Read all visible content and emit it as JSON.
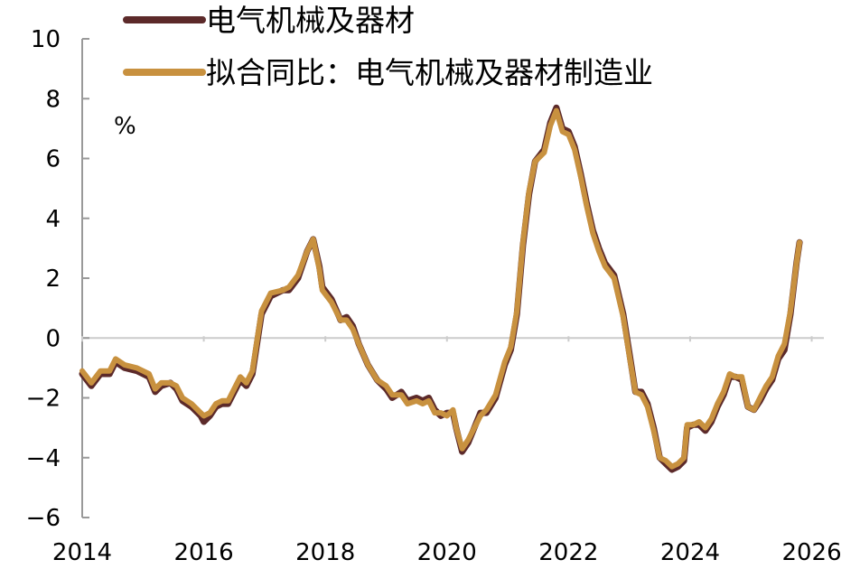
{
  "chart_data": {
    "type": "line",
    "title": "",
    "xlabel": "",
    "ylabel": "",
    "unit_label": "%",
    "xlim": [
      2014,
      2026.2
    ],
    "ylim": [
      -6,
      10
    ],
    "x_ticks": [
      2014,
      2016,
      2018,
      2020,
      2022,
      2024,
      2026
    ],
    "x_tick_labels": [
      "2014",
      "2016",
      "2018",
      "2020",
      "2022",
      "2024",
      "2026"
    ],
    "y_ticks": [
      -6,
      -4,
      -2,
      0,
      2,
      4,
      6,
      8,
      10
    ],
    "y_tick_labels": [
      "−6",
      "−4",
      "−2",
      "0",
      "2",
      "4",
      "6",
      "8",
      "10"
    ],
    "grid": false,
    "zero_line": true,
    "legend_position": "top",
    "colors": {
      "axis": "#999999",
      "zero_line": "#cccccc"
    },
    "series": [
      {
        "name": "电气机械及器材",
        "color": "#5c2a2a",
        "points": [
          [
            2014.0,
            -1.2
          ],
          [
            2014.15,
            -1.6
          ],
          [
            2014.3,
            -1.2
          ],
          [
            2014.45,
            -1.2
          ],
          [
            2014.55,
            -0.8
          ],
          [
            2014.7,
            -1.0
          ],
          [
            2014.9,
            -1.1
          ],
          [
            2015.0,
            -1.2
          ],
          [
            2015.1,
            -1.3
          ],
          [
            2015.2,
            -1.8
          ],
          [
            2015.3,
            -1.6
          ],
          [
            2015.45,
            -1.5
          ],
          [
            2015.55,
            -1.7
          ],
          [
            2015.65,
            -2.1
          ],
          [
            2015.8,
            -2.3
          ],
          [
            2015.95,
            -2.6
          ],
          [
            2016.0,
            -2.8
          ],
          [
            2016.1,
            -2.6
          ],
          [
            2016.2,
            -2.3
          ],
          [
            2016.3,
            -2.2
          ],
          [
            2016.4,
            -2.2
          ],
          [
            2016.5,
            -1.8
          ],
          [
            2016.6,
            -1.4
          ],
          [
            2016.7,
            -1.6
          ],
          [
            2016.8,
            -1.2
          ],
          [
            2016.95,
            0.8
          ],
          [
            2017.1,
            1.4
          ],
          [
            2017.3,
            1.6
          ],
          [
            2017.4,
            1.6
          ],
          [
            2017.55,
            2.0
          ],
          [
            2017.7,
            2.9
          ],
          [
            2017.8,
            3.3
          ],
          [
            2017.9,
            2.4
          ],
          [
            2017.95,
            1.7
          ],
          [
            2018.1,
            1.3
          ],
          [
            2018.25,
            0.6
          ],
          [
            2018.35,
            0.7
          ],
          [
            2018.45,
            0.4
          ],
          [
            2018.55,
            -0.2
          ],
          [
            2018.7,
            -0.9
          ],
          [
            2018.85,
            -1.4
          ],
          [
            2019.0,
            -1.7
          ],
          [
            2019.1,
            -2.0
          ],
          [
            2019.25,
            -1.8
          ],
          [
            2019.35,
            -2.1
          ],
          [
            2019.5,
            -2.0
          ],
          [
            2019.6,
            -2.1
          ],
          [
            2019.7,
            -2.0
          ],
          [
            2019.8,
            -2.4
          ],
          [
            2019.9,
            -2.6
          ],
          [
            2020.0,
            -2.5
          ],
          [
            2020.1,
            -2.5
          ],
          [
            2020.15,
            -3.0
          ],
          [
            2020.25,
            -3.8
          ],
          [
            2020.35,
            -3.5
          ],
          [
            2020.45,
            -3.0
          ],
          [
            2020.55,
            -2.5
          ],
          [
            2020.65,
            -2.5
          ],
          [
            2020.8,
            -2.0
          ],
          [
            2020.95,
            -0.9
          ],
          [
            2021.05,
            -0.4
          ],
          [
            2021.15,
            0.8
          ],
          [
            2021.25,
            3.1
          ],
          [
            2021.35,
            4.8
          ],
          [
            2021.45,
            5.9
          ],
          [
            2021.6,
            6.3
          ],
          [
            2021.7,
            7.2
          ],
          [
            2021.8,
            7.7
          ],
          [
            2021.9,
            7.0
          ],
          [
            2022.0,
            6.9
          ],
          [
            2022.1,
            6.4
          ],
          [
            2022.2,
            5.5
          ],
          [
            2022.3,
            4.5
          ],
          [
            2022.4,
            3.6
          ],
          [
            2022.5,
            3.0
          ],
          [
            2022.6,
            2.5
          ],
          [
            2022.75,
            2.1
          ],
          [
            2022.9,
            0.8
          ],
          [
            2023.0,
            -0.5
          ],
          [
            2023.1,
            -1.8
          ],
          [
            2023.2,
            -1.8
          ],
          [
            2023.3,
            -2.2
          ],
          [
            2023.4,
            -3.0
          ],
          [
            2023.5,
            -4.0
          ],
          [
            2023.6,
            -4.2
          ],
          [
            2023.7,
            -4.4
          ],
          [
            2023.8,
            -4.3
          ],
          [
            2023.9,
            -4.1
          ],
          [
            2023.95,
            -3.0
          ],
          [
            2024.05,
            -2.9
          ],
          [
            2024.15,
            -2.9
          ],
          [
            2024.25,
            -3.1
          ],
          [
            2024.35,
            -2.8
          ],
          [
            2024.45,
            -2.3
          ],
          [
            2024.55,
            -1.9
          ],
          [
            2024.65,
            -1.3
          ],
          [
            2024.75,
            -1.3
          ],
          [
            2024.85,
            -1.4
          ],
          [
            2024.95,
            -2.3
          ],
          [
            2025.05,
            -2.4
          ],
          [
            2025.15,
            -2.1
          ],
          [
            2025.25,
            -1.7
          ],
          [
            2025.35,
            -1.4
          ],
          [
            2025.45,
            -0.7
          ],
          [
            2025.55,
            -0.4
          ],
          [
            2025.65,
            0.8
          ],
          [
            2025.75,
            2.5
          ],
          [
            2025.8,
            3.2
          ]
        ]
      },
      {
        "name": "拟合同比：电气机械及器材制造业",
        "color": "#c8913f",
        "points": [
          [
            2014.0,
            -1.1
          ],
          [
            2014.15,
            -1.5
          ],
          [
            2014.3,
            -1.1
          ],
          [
            2014.45,
            -1.1
          ],
          [
            2014.55,
            -0.7
          ],
          [
            2014.7,
            -0.9
          ],
          [
            2014.9,
            -1.0
          ],
          [
            2015.0,
            -1.1
          ],
          [
            2015.1,
            -1.2
          ],
          [
            2015.2,
            -1.7
          ],
          [
            2015.3,
            -1.5
          ],
          [
            2015.45,
            -1.5
          ],
          [
            2015.55,
            -1.6
          ],
          [
            2015.65,
            -2.0
          ],
          [
            2015.8,
            -2.2
          ],
          [
            2015.95,
            -2.5
          ],
          [
            2016.0,
            -2.6
          ],
          [
            2016.1,
            -2.5
          ],
          [
            2016.2,
            -2.2
          ],
          [
            2016.3,
            -2.1
          ],
          [
            2016.4,
            -2.1
          ],
          [
            2016.5,
            -1.7
          ],
          [
            2016.6,
            -1.3
          ],
          [
            2016.7,
            -1.5
          ],
          [
            2016.8,
            -1.1
          ],
          [
            2016.95,
            0.9
          ],
          [
            2017.1,
            1.5
          ],
          [
            2017.3,
            1.6
          ],
          [
            2017.4,
            1.7
          ],
          [
            2017.55,
            2.1
          ],
          [
            2017.7,
            2.9
          ],
          [
            2017.8,
            3.3
          ],
          [
            2017.9,
            2.3
          ],
          [
            2017.95,
            1.6
          ],
          [
            2018.1,
            1.2
          ],
          [
            2018.25,
            0.6
          ],
          [
            2018.35,
            0.6
          ],
          [
            2018.45,
            0.3
          ],
          [
            2018.55,
            -0.2
          ],
          [
            2018.7,
            -0.9
          ],
          [
            2018.85,
            -1.4
          ],
          [
            2019.0,
            -1.6
          ],
          [
            2019.1,
            -1.9
          ],
          [
            2019.25,
            -1.9
          ],
          [
            2019.35,
            -2.2
          ],
          [
            2019.5,
            -2.1
          ],
          [
            2019.6,
            -2.2
          ],
          [
            2019.7,
            -2.1
          ],
          [
            2019.8,
            -2.5
          ],
          [
            2019.9,
            -2.5
          ],
          [
            2020.0,
            -2.6
          ],
          [
            2020.1,
            -2.4
          ],
          [
            2020.15,
            -3.0
          ],
          [
            2020.25,
            -3.7
          ],
          [
            2020.35,
            -3.4
          ],
          [
            2020.45,
            -3.0
          ],
          [
            2020.55,
            -2.6
          ],
          [
            2020.65,
            -2.4
          ],
          [
            2020.8,
            -1.9
          ],
          [
            2020.95,
            -0.8
          ],
          [
            2021.05,
            -0.3
          ],
          [
            2021.15,
            0.9
          ],
          [
            2021.25,
            3.2
          ],
          [
            2021.35,
            4.9
          ],
          [
            2021.45,
            5.9
          ],
          [
            2021.6,
            6.2
          ],
          [
            2021.7,
            7.1
          ],
          [
            2021.8,
            7.6
          ],
          [
            2021.9,
            6.9
          ],
          [
            2022.0,
            6.8
          ],
          [
            2022.1,
            6.3
          ],
          [
            2022.2,
            5.4
          ],
          [
            2022.3,
            4.4
          ],
          [
            2022.4,
            3.5
          ],
          [
            2022.5,
            2.9
          ],
          [
            2022.6,
            2.4
          ],
          [
            2022.75,
            2.0
          ],
          [
            2022.9,
            0.7
          ],
          [
            2023.0,
            -0.6
          ],
          [
            2023.1,
            -1.8
          ],
          [
            2023.2,
            -1.9
          ],
          [
            2023.3,
            -2.3
          ],
          [
            2023.4,
            -3.1
          ],
          [
            2023.5,
            -4.0
          ],
          [
            2023.6,
            -4.1
          ],
          [
            2023.7,
            -4.3
          ],
          [
            2023.8,
            -4.2
          ],
          [
            2023.9,
            -4.0
          ],
          [
            2023.95,
            -2.9
          ],
          [
            2024.05,
            -2.9
          ],
          [
            2024.15,
            -2.8
          ],
          [
            2024.25,
            -3.0
          ],
          [
            2024.35,
            -2.7
          ],
          [
            2024.45,
            -2.2
          ],
          [
            2024.55,
            -1.8
          ],
          [
            2024.65,
            -1.2
          ],
          [
            2024.75,
            -1.3
          ],
          [
            2024.85,
            -1.3
          ],
          [
            2024.95,
            -2.3
          ],
          [
            2025.05,
            -2.4
          ],
          [
            2025.15,
            -2.0
          ],
          [
            2025.25,
            -1.6
          ],
          [
            2025.35,
            -1.3
          ],
          [
            2025.45,
            -0.6
          ],
          [
            2025.55,
            -0.2
          ],
          [
            2025.65,
            0.9
          ],
          [
            2025.75,
            2.5
          ],
          [
            2025.8,
            3.2
          ]
        ]
      }
    ]
  }
}
